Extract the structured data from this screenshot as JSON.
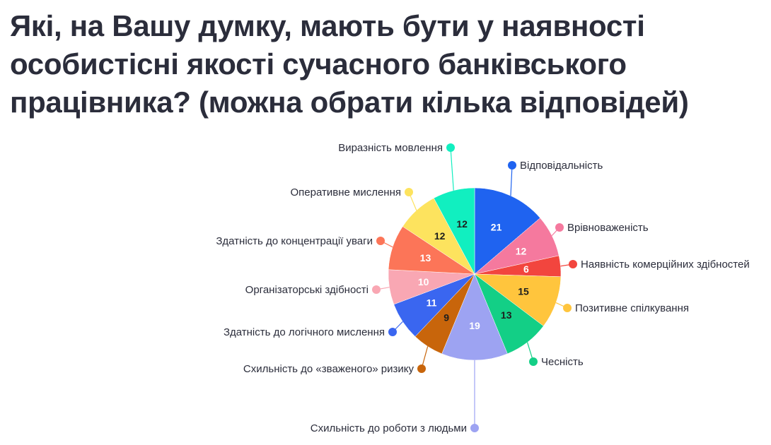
{
  "chart_data": {
    "type": "pie",
    "title": "Які, на Вашу думку, мають бути у наявності особистісні якості сучасного банківського працівника? (можна обрати кілька відповідей)",
    "slices": [
      {
        "label": "Відповідальність",
        "value": 21,
        "color": "#1f63f0"
      },
      {
        "label": "Врівноваженість",
        "value": 12,
        "color": "#f5799e"
      },
      {
        "label": "Наявність комерційних здібностей",
        "value": 6,
        "color": "#f2453e"
      },
      {
        "label": "Позитивне спілкування",
        "value": 15,
        "color": "#ffc53d"
      },
      {
        "label": "Чесність",
        "value": 13,
        "color": "#13cf86"
      },
      {
        "label": "Схильність до роботи з людьми",
        "value": 19,
        "color": "#9da3f2"
      },
      {
        "label": "Схильність до «зваженого» ризику",
        "value": 9,
        "color": "#c8650b"
      },
      {
        "label": "Здатність до логічного мислення",
        "value": 11,
        "color": "#3a66f0"
      },
      {
        "label": "Організаторські здібності",
        "value": 10,
        "color": "#f9a7b3"
      },
      {
        "label": "Здатність до концентрації уваги",
        "value": 13,
        "color": "#fc7558"
      },
      {
        "label": "Оперативне мислення",
        "value": 12,
        "color": "#fde35e"
      },
      {
        "label": "Виразність мовлення",
        "value": 12,
        "color": "#11efc0"
      }
    ]
  }
}
